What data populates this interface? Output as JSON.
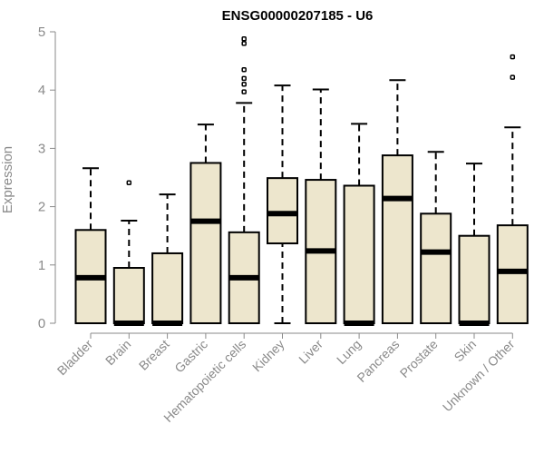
{
  "chart_data": {
    "type": "boxplot",
    "title": "ENSG00000207185 - U6",
    "xlabel": "",
    "ylabel": "Expression",
    "ylim": [
      0,
      5
    ],
    "yticks": [
      "0",
      "1",
      "2",
      "3",
      "4",
      "5"
    ],
    "grid": false,
    "colors": {
      "box_fill": "#EDE6CD",
      "stroke": "#000000",
      "axis": "#8a8a8a"
    },
    "categories": [
      "Bladder",
      "Brain",
      "Breast",
      "Gastric",
      "Hematopoietic cells",
      "Kidney",
      "Liver",
      "Lung",
      "Pancreas",
      "Prostate",
      "Skin",
      "Unknown / Other"
    ],
    "boxes": [
      {
        "category": "Bladder",
        "min": 0,
        "q1": 0,
        "median": 0.78,
        "q3": 1.6,
        "max": 2.66,
        "outliers": []
      },
      {
        "category": "Brain",
        "min": 0,
        "q1": 0,
        "median": 0,
        "q3": 0.95,
        "max": 1.76,
        "outliers": [
          2.41
        ]
      },
      {
        "category": "Breast",
        "min": 0,
        "q1": 0,
        "median": 0,
        "q3": 1.2,
        "max": 2.21,
        "outliers": []
      },
      {
        "category": "Gastric",
        "min": 0,
        "q1": 0,
        "median": 1.75,
        "q3": 2.75,
        "max": 3.41,
        "outliers": []
      },
      {
        "category": "Hematopoietic cells",
        "min": 0,
        "q1": 0,
        "median": 0.78,
        "q3": 1.56,
        "max": 3.78,
        "outliers": [
          4.88,
          4.8,
          4.35,
          4.2,
          4.1,
          3.97
        ]
      },
      {
        "category": "Kidney",
        "min": 0,
        "q1": 1.37,
        "median": 1.88,
        "q3": 2.49,
        "max": 4.08,
        "outliers": []
      },
      {
        "category": "Liver",
        "min": 0,
        "q1": 0,
        "median": 1.24,
        "q3": 2.46,
        "max": 4.01,
        "outliers": []
      },
      {
        "category": "Lung",
        "min": 0,
        "q1": 0,
        "median": 0,
        "q3": 2.36,
        "max": 3.42,
        "outliers": []
      },
      {
        "category": "Pancreas",
        "min": 0,
        "q1": 0,
        "median": 2.14,
        "q3": 2.88,
        "max": 4.17,
        "outliers": []
      },
      {
        "category": "Prostate",
        "min": 0,
        "q1": 0,
        "median": 1.22,
        "q3": 1.88,
        "max": 2.94,
        "outliers": []
      },
      {
        "category": "Skin",
        "min": 0,
        "q1": 0,
        "median": 0,
        "q3": 1.5,
        "max": 2.74,
        "outliers": []
      },
      {
        "category": "Unknown / Other",
        "min": 0,
        "q1": 0,
        "median": 0.89,
        "q3": 1.68,
        "max": 3.36,
        "outliers": [
          4.57,
          4.22
        ]
      }
    ]
  }
}
